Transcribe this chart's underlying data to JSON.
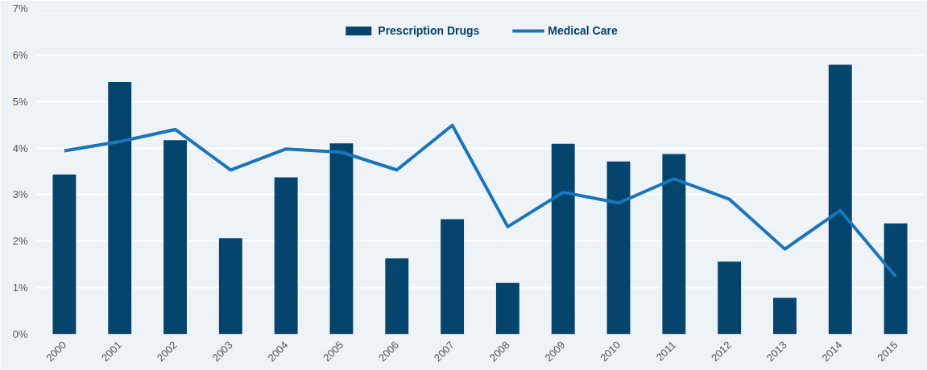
{
  "chart_data": {
    "type": "bar",
    "categories": [
      "2000",
      "2001",
      "2002",
      "2003",
      "2004",
      "2005",
      "2006",
      "2007",
      "2008",
      "2009",
      "2010",
      "2011",
      "2012",
      "2013",
      "2014",
      "2015"
    ],
    "series": [
      {
        "name": "Prescription Drugs",
        "color": "#05446c",
        "values": [
          3.43,
          5.42,
          4.17,
          2.06,
          3.37,
          4.1,
          1.63,
          2.47,
          1.1,
          4.09,
          3.71,
          3.87,
          1.56,
          0.78,
          5.79,
          2.38
        ]
      },
      {
        "name": "Medical Care",
        "type": "line",
        "color": "#1a75bb",
        "values": [
          3.94,
          4.14,
          4.4,
          3.53,
          3.98,
          3.91,
          3.53,
          4.49,
          2.31,
          3.05,
          2.82,
          3.34,
          2.9,
          1.83,
          2.66,
          1.24
        ]
      }
    ],
    "ylim": [
      0,
      7
    ],
    "yticks": [
      {
        "value": 0,
        "label": "0%"
      },
      {
        "value": 1,
        "label": "1%"
      },
      {
        "value": 2,
        "label": "2%"
      },
      {
        "value": 3,
        "label": "3%"
      },
      {
        "value": 4,
        "label": "4%"
      },
      {
        "value": 5,
        "label": "5%"
      },
      {
        "value": 6,
        "label": "6%"
      },
      {
        "value": 7,
        "label": "7%"
      }
    ],
    "grid": "y",
    "legend": "top",
    "line_style": "solid",
    "marker": "none"
  }
}
